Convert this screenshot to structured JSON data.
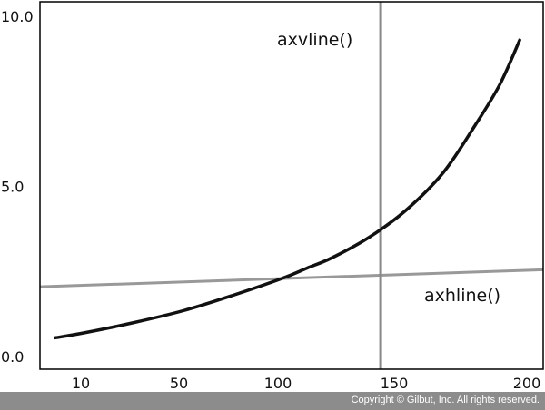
{
  "chart_data": {
    "type": "line",
    "xlim": [
      0,
      200
    ],
    "ylim": [
      0.0,
      10.0
    ],
    "x_ticks": [
      {
        "value": 10,
        "label": "10"
      },
      {
        "value": 50,
        "label": "50"
      },
      {
        "value": 100,
        "label": "100"
      },
      {
        "value": 150,
        "label": "150"
      },
      {
        "value": 200,
        "label": "200"
      }
    ],
    "y_ticks": [
      {
        "value": 0.0,
        "label": "0.0"
      },
      {
        "value": 5.0,
        "label": "5.0"
      },
      {
        "value": 10.0,
        "label": "10.0"
      }
    ],
    "grid": false,
    "series": [
      {
        "x": [
          8,
          20,
          40,
          60,
          80,
          100,
          110,
          120,
          135,
          150,
          165,
          178,
          188,
          196
        ],
        "y": [
          0.55,
          0.7,
          1.0,
          1.35,
          1.8,
          2.3,
          2.6,
          2.9,
          3.5,
          4.3,
          5.4,
          6.8,
          8.0,
          9.3
        ],
        "color": "#111111"
      }
    ],
    "vline": {
      "x": 139,
      "label": "axvline()",
      "color": "#888888"
    },
    "hline": {
      "y_start": 2.05,
      "y_end": 2.55,
      "label": "axhline()",
      "color": "#999999"
    }
  },
  "footer": {
    "copyright": "Copyright © Gilbut, Inc. All rights reserved."
  }
}
